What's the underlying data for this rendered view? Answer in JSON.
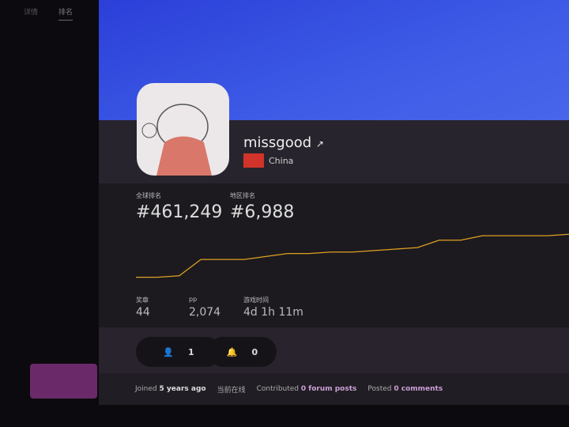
{
  "nav": {
    "tabs": [
      {
        "label": "详情"
      },
      {
        "label": "排名"
      }
    ]
  },
  "profile": {
    "username": "missgood",
    "country": "China"
  },
  "stats": {
    "global_rank_label": "全球排名",
    "global_rank": "#461,249",
    "country_rank_label": "地区排名",
    "country_rank": "#6,988",
    "medals_label": "奖章",
    "medals": "44",
    "pp_label": "pp",
    "pp": "2,074",
    "playtime_label": "游戏时间",
    "playtime": "4d 1h 11m"
  },
  "buttons": {
    "followers": "1",
    "notifications": "0"
  },
  "footer": {
    "joined_prefix": "Joined",
    "joined": "5 years ago",
    "online": "当前在线",
    "contributed_prefix": "Contributed",
    "forum_posts": "0 forum posts",
    "posted_prefix": "Posted",
    "comments": "0 comments"
  },
  "colors": {
    "banner": "#3d5be6",
    "rank_line": "#e0a020",
    "highlight": "#c9a0d6"
  },
  "chart_data": {
    "type": "line",
    "title": "",
    "values": [
      5,
      5,
      6,
      17,
      17,
      17,
      19,
      21,
      21,
      22,
      22,
      23,
      24,
      25,
      30,
      30,
      33,
      33,
      33,
      33,
      34
    ]
  }
}
